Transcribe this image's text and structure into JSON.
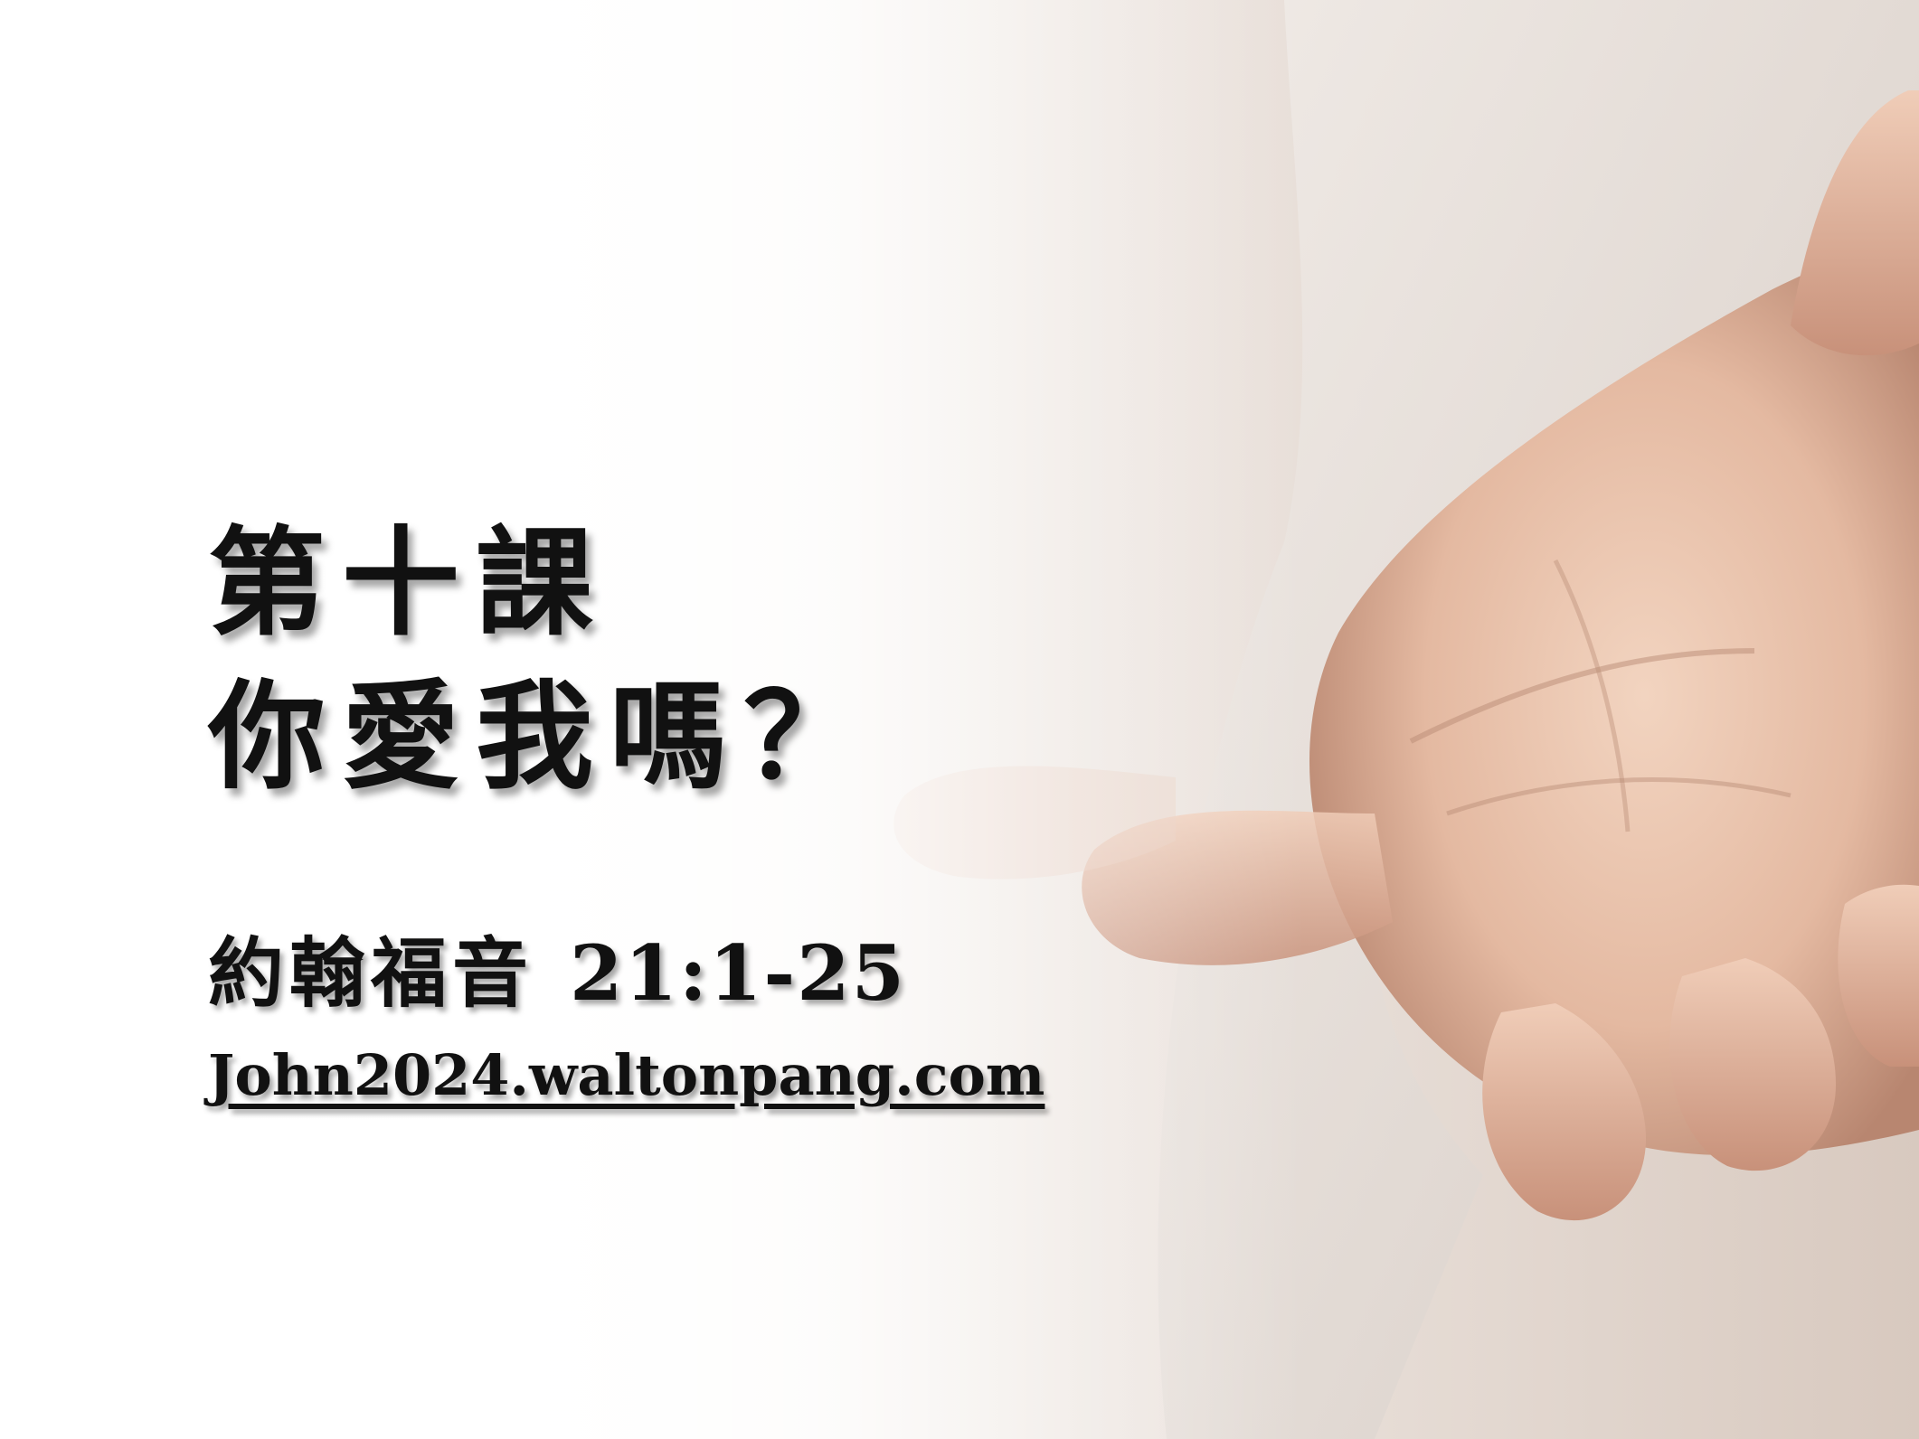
{
  "slide": {
    "title_line1": "第十課",
    "title_line2": "你愛我嗎？",
    "scripture_book": "約翰福音",
    "scripture_ref": "21:1-25",
    "website": "John2024.waltonpang.com"
  },
  "colors": {
    "text": "#111111",
    "background": "#ffffff",
    "skin": "#e9c4ae",
    "sleeve": "#e6e0db"
  },
  "images": {
    "hero": "open-hand-photo"
  }
}
